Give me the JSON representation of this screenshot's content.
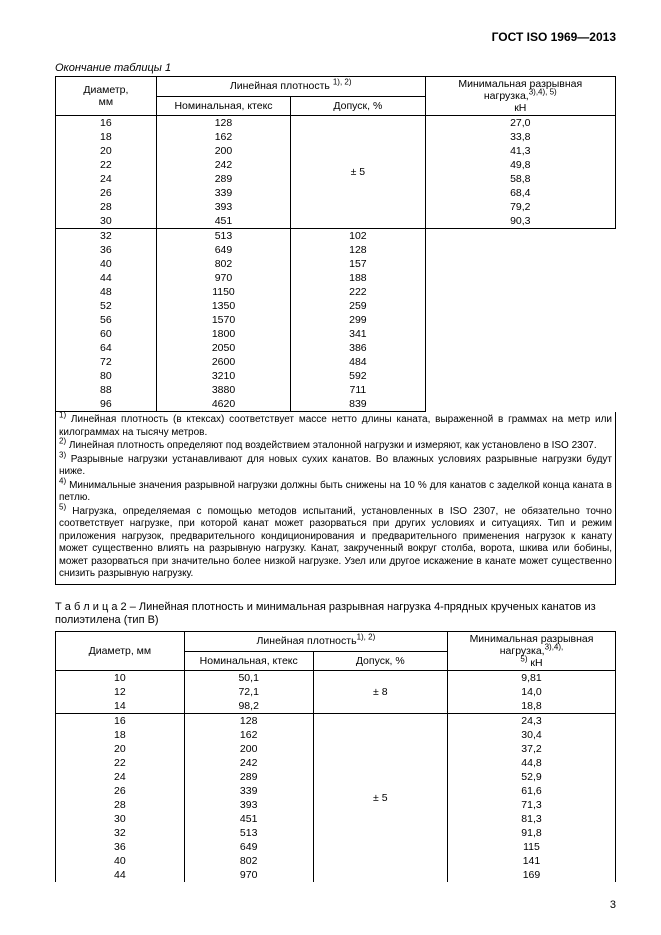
{
  "doc_header": "ГОСТ ISO 1969—2013",
  "table1_caption": "Окончание таблицы 1",
  "table1_headers": {
    "diam": "Диаметр,",
    "diam_unit": "мм",
    "density": "Линейная плотность",
    "density_sup": "1), 2)",
    "nominal": "Номинальная, ктекс",
    "tolerance": "Допуск, %",
    "breaking": "Минимальная разрывная нагрузка,",
    "breaking_sup": "3),4), 5)",
    "breaking_unit": "кН",
    "tol_val": "± 5"
  },
  "table1_rows_a": [
    {
      "d": "16",
      "n": "128",
      "b": "27,0"
    },
    {
      "d": "18",
      "n": "162",
      "b": "33,8"
    },
    {
      "d": "20",
      "n": "200",
      "b": "41,3"
    },
    {
      "d": "22",
      "n": "242",
      "b": "49,8"
    },
    {
      "d": "24",
      "n": "289",
      "b": "58,8"
    },
    {
      "d": "26",
      "n": "339",
      "b": "68,4"
    },
    {
      "d": "28",
      "n": "393",
      "b": "79,2"
    },
    {
      "d": "30",
      "n": "451",
      "b": "90,3"
    }
  ],
  "table1_rows_b": [
    {
      "d": "32",
      "n": "513",
      "b": "102"
    },
    {
      "d": "36",
      "n": "649",
      "b": "128"
    },
    {
      "d": "40",
      "n": "802",
      "b": "157"
    },
    {
      "d": "44",
      "n": "970",
      "b": "188"
    },
    {
      "d": "48",
      "n": "1150",
      "b": "222"
    },
    {
      "d": "52",
      "n": "1350",
      "b": "259"
    },
    {
      "d": "56",
      "n": "1570",
      "b": "299"
    },
    {
      "d": "60",
      "n": "1800",
      "b": "341"
    },
    {
      "d": "64",
      "n": "2050",
      "b": "386"
    },
    {
      "d": "72",
      "n": "2600",
      "b": "484"
    },
    {
      "d": "80",
      "n": "3210",
      "b": "592"
    },
    {
      "d": "88",
      "n": "3880",
      "b": "711"
    },
    {
      "d": "96",
      "n": "4620",
      "b": "839"
    }
  ],
  "notes": {
    "n1_sup": "1)",
    "n1": " Линейная плотность (в ктексах) соответствует массе нетто длины каната, выраженной в граммах на метр или килограммах на тысячу метров.",
    "n2_sup": "2)",
    "n2": " Линейная плотность определяют под воздействием эталонной нагрузки и измеряют, как установлено в ISO 2307.",
    "n3_sup": "3)",
    "n3": " Разрывные нагрузки устанавливают для новых сухих канатов. Во влажных условиях разрывные нагрузки будут ниже.",
    "n4_sup": "4)",
    "n4": " Минимальные значения разрывной нагрузки должны быть снижены на 10 % для канатов с заделкой конца каната в петлю.",
    "n5_sup": "5)",
    "n5": " Нагрузка, определяемая с помощью методов испытаний, установленных в ISO 2307, не обязательно точно соответствует нагрузке, при которой канат может разорваться при других условиях и ситуациях. Тип и режим приложения нагрузок, предварительного кондиционирования и предварительного применения нагрузок к канату может существенно влиять на разрывную нагрузку. Канат, закрученный вокруг столба, ворота, шкива или бобины, может разорваться при значительно более низкой нагрузке. Узел или другое искажение в канате может существенно снизить разрывную нагрузку."
  },
  "table2_title_a": "Т а б л и ц а   2",
  "table2_title_b": " – Линейная плотность и минимальная разрывная нагрузка 4-прядных крученых канатов из полиэтилена (тип B)",
  "table2_headers": {
    "diam": "Диаметр, мм",
    "density": "Линейная плотность",
    "density_sup": "1), 2)",
    "nominal": "Номинальная, ктекс",
    "tolerance": "Допуск, %",
    "breaking": "Минимальная разрывная нагрузка,",
    "breaking_sup": "3),4),",
    "breaking_unit_sup": "5)",
    "breaking_unit": " кН",
    "tol_val1": "± 8",
    "tol_val2": "± 5"
  },
  "table2_rows_a": [
    {
      "d": "10",
      "n": "50,1",
      "b": "9,81"
    },
    {
      "d": "12",
      "n": "72,1",
      "b": "14,0"
    },
    {
      "d": "14",
      "n": "98,2",
      "b": "18,8"
    }
  ],
  "table2_rows_b": [
    {
      "d": "16",
      "n": "128",
      "b": "24,3"
    },
    {
      "d": "18",
      "n": "162",
      "b": "30,4"
    },
    {
      "d": "20",
      "n": "200",
      "b": "37,2"
    },
    {
      "d": "22",
      "n": "242",
      "b": "44,8"
    },
    {
      "d": "24",
      "n": "289",
      "b": "52,9"
    },
    {
      "d": "26",
      "n": "339",
      "b": "61,6"
    },
    {
      "d": "28",
      "n": "393",
      "b": "71,3"
    },
    {
      "d": "30",
      "n": "451",
      "b": "81,3"
    },
    {
      "d": "32",
      "n": "513",
      "b": "91,8"
    },
    {
      "d": "36",
      "n": "649",
      "b": "115"
    },
    {
      "d": "40",
      "n": "802",
      "b": "141"
    },
    {
      "d": "44",
      "n": "970",
      "b": "169"
    }
  ],
  "page_number": "3"
}
